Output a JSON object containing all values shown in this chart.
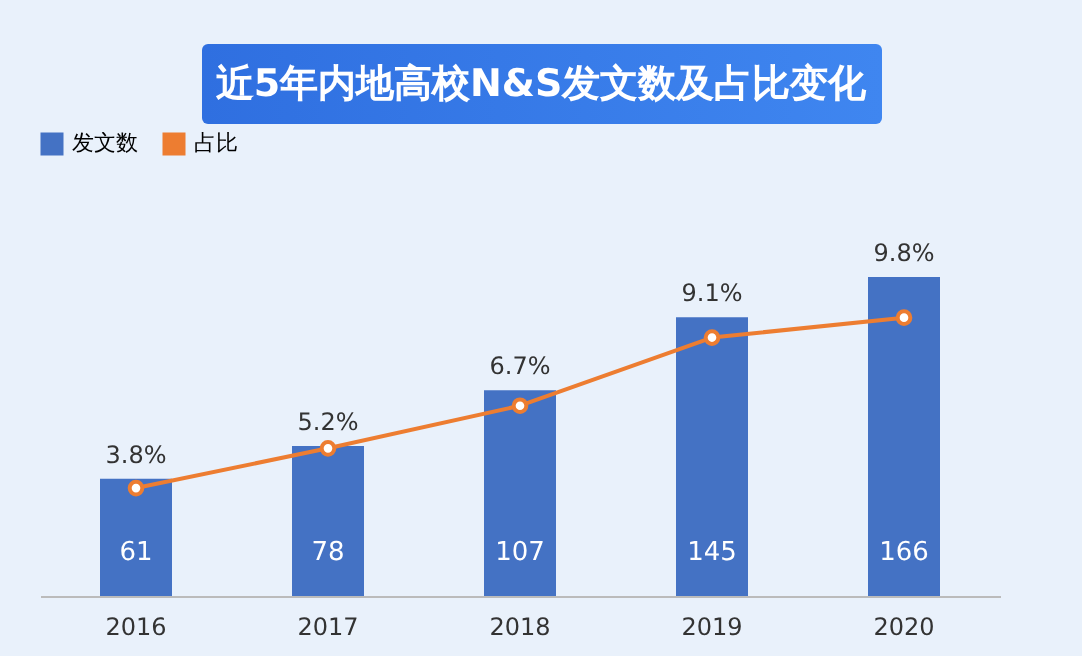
{
  "chart_data": {
    "type": "bar",
    "title": "近5年内地高校N&S发文数及占比变化",
    "categories": [
      "2016",
      "2017",
      "2018",
      "2019",
      "2020"
    ],
    "series": [
      {
        "name": "发文数",
        "color": "#4472c4",
        "values": [
          61,
          78,
          107,
          145,
          166
        ],
        "value_labels": [
          "61",
          "78",
          "107",
          "145",
          "166"
        ]
      },
      {
        "name": "占比",
        "type": "line",
        "axis": "y2",
        "color": "#ed7d31",
        "values": [
          3.8,
          5.2,
          6.7,
          9.1,
          9.8
        ],
        "value_labels": [
          "3.8%",
          "5.2%",
          "6.7%",
          "9.1%",
          "9.8%"
        ]
      }
    ],
    "tick_labels": "x",
    "legend": "top",
    "marker": "circle",
    "grid": false
  }
}
